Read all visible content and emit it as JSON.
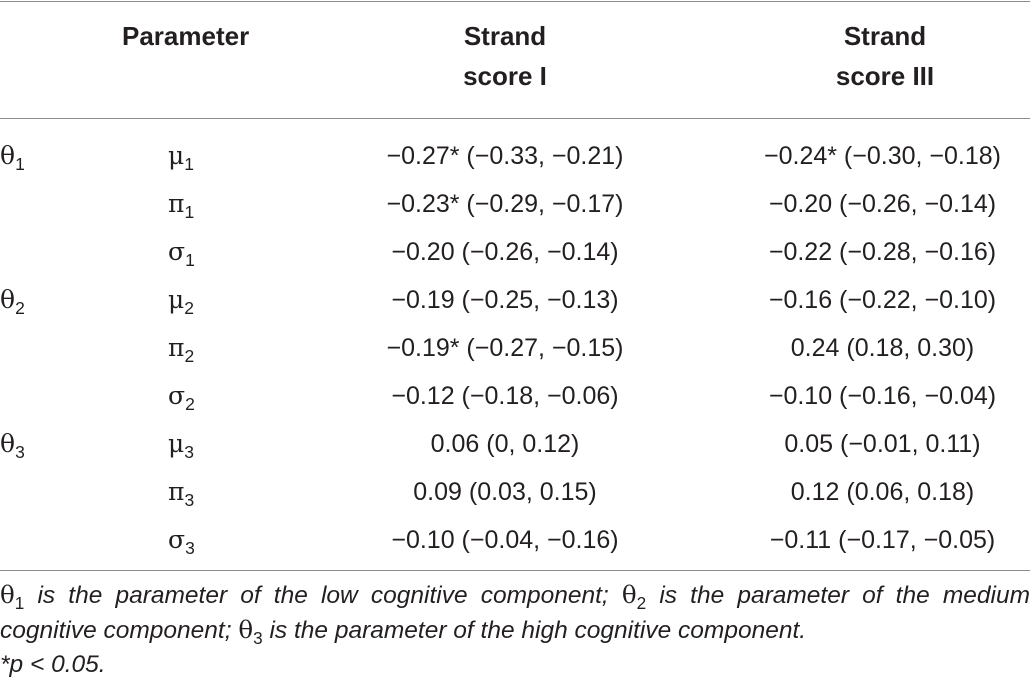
{
  "header": {
    "parameter": "Parameter",
    "strand1_line1": "Strand",
    "strand1_line2": "score I",
    "strand3_line1": "Strand",
    "strand3_line2": "score III"
  },
  "rows": [
    {
      "group": "θ",
      "group_sub": "1",
      "param": "μ",
      "param_sub": "1",
      "s1": "−0.27* (−0.33, −0.21)",
      "s3": "−0.24* (−0.30, −0.18)"
    },
    {
      "group": "",
      "group_sub": "",
      "param": "π",
      "param_sub": "1",
      "s1": "−0.23* (−0.29, −0.17)",
      "s3": "−0.20 (−0.26, −0.14)"
    },
    {
      "group": "",
      "group_sub": "",
      "param": "σ",
      "param_sub": "1",
      "s1": "−0.20 (−0.26, −0.14)",
      "s3": "−0.22 (−0.28, −0.16)"
    },
    {
      "group": "θ",
      "group_sub": "2",
      "param": "μ",
      "param_sub": "2",
      "s1": "−0.19 (−0.25, −0.13)",
      "s3": "−0.16 (−0.22, −0.10)"
    },
    {
      "group": "",
      "group_sub": "",
      "param": "π",
      "param_sub": "2",
      "s1": "−0.19* (−0.27, −0.15)",
      "s3": "0.24 (0.18, 0.30)"
    },
    {
      "group": "",
      "group_sub": "",
      "param": "σ",
      "param_sub": "2",
      "s1": "−0.12 (−0.18, −0.06)",
      "s3": "−0.10 (−0.16, −0.04)"
    },
    {
      "group": "θ",
      "group_sub": "3",
      "param": "μ",
      "param_sub": "3",
      "s1": "0.06 (0, 0.12)",
      "s3": "0.05 (−0.01, 0.11)"
    },
    {
      "group": "",
      "group_sub": "",
      "param": "π",
      "param_sub": "3",
      "s1": "0.09 (0.03, 0.15)",
      "s3": "0.12 (0.06, 0.18)"
    },
    {
      "group": "",
      "group_sub": "",
      "param": "σ",
      "param_sub": "3",
      "s1": "−0.10 (−0.04, −0.16)",
      "s3": "−0.11 (−0.17, −0.05)"
    }
  ],
  "footnote": {
    "t1_sym": "θ",
    "t1_sub": "1",
    "t1_text": " is the parameter of the low cognitive component; ",
    "t2_sym": "θ",
    "t2_sub": "2",
    "t2_text": " is the parameter of the medium cognitive component; ",
    "t3_sym": "θ",
    "t3_sub": "3",
    "t3_text": " is the parameter of the high cognitive component.",
    "significance": "*p < 0.05."
  }
}
